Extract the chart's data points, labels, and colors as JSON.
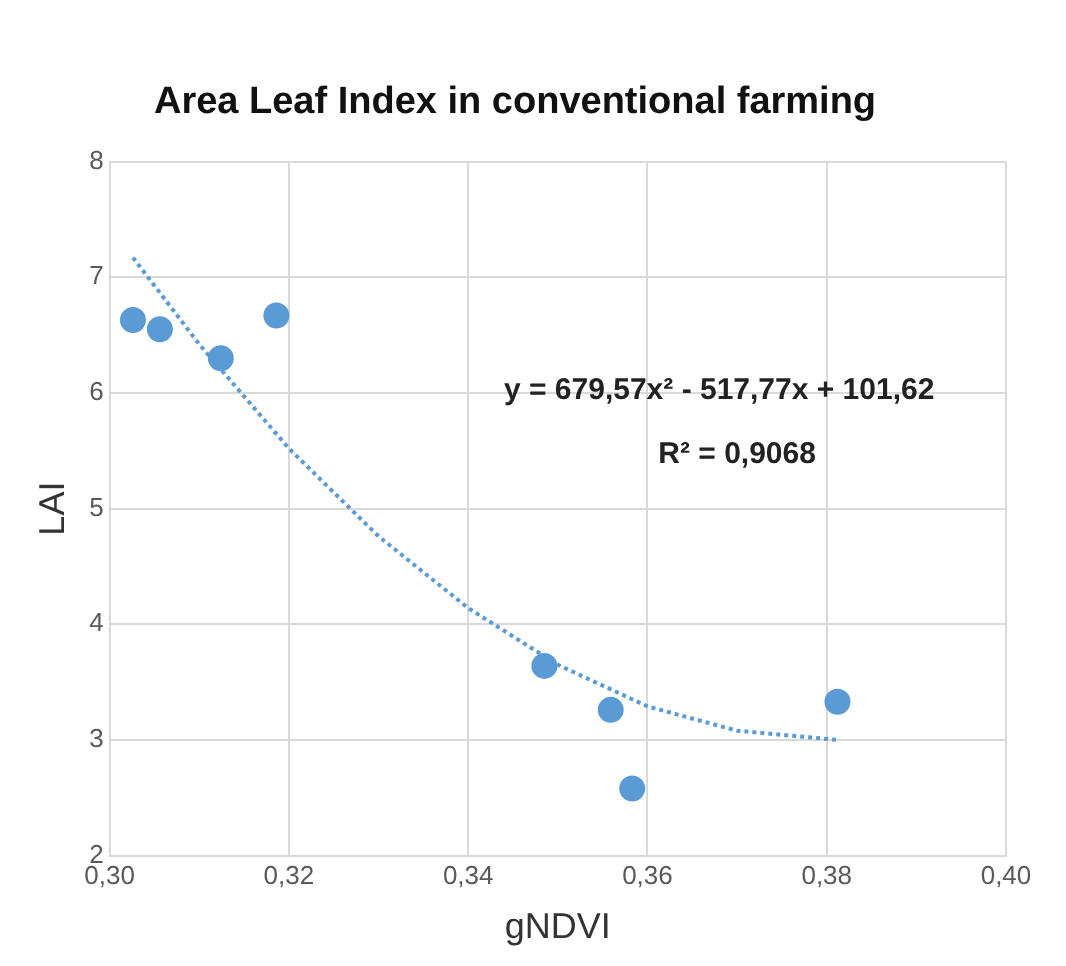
{
  "chart_data": {
    "type": "scatter",
    "title": "Area Leaf Index in conventional farming",
    "xlabel": "gNDVI",
    "ylabel": "LAI",
    "series": [
      {
        "type": "scatter",
        "color": "#5b9bd5",
        "marker": "circle",
        "x": [
          0.3026,
          0.3056,
          0.3124,
          0.3186,
          0.3485,
          0.3559,
          0.3583,
          0.3812
        ],
        "values": [
          6.63,
          6.55,
          6.3,
          6.67,
          3.64,
          3.26,
          2.58,
          3.33
        ]
      },
      {
        "type": "line",
        "color": "#5b9bd5",
        "line_style": "dotted",
        "marker": "none",
        "x": [
          0.3026,
          0.31,
          0.32,
          0.33,
          0.34,
          0.35,
          0.36,
          0.37,
          0.3812
        ],
        "values": [
          7.17,
          6.42,
          5.52,
          4.76,
          4.14,
          3.65,
          3.29,
          3.08,
          3.0
        ]
      }
    ],
    "xlim": [
      0.3,
      0.4
    ],
    "xticks": [
      {
        "value": 0.3,
        "label": "0,30"
      },
      {
        "value": 0.32,
        "label": "0,32"
      },
      {
        "value": 0.34,
        "label": "0,34"
      },
      {
        "value": 0.36,
        "label": "0,36"
      },
      {
        "value": 0.38,
        "label": "0,38"
      },
      {
        "value": 0.4,
        "label": "0,40"
      }
    ],
    "ylim": [
      2,
      8
    ],
    "yticks": [
      2,
      3,
      4,
      5,
      6,
      7,
      8
    ],
    "grid": true,
    "legend": false,
    "annotations": [
      "y = 679,57x² - 517,77x + 101,62",
      "R² = 0,9068"
    ]
  }
}
